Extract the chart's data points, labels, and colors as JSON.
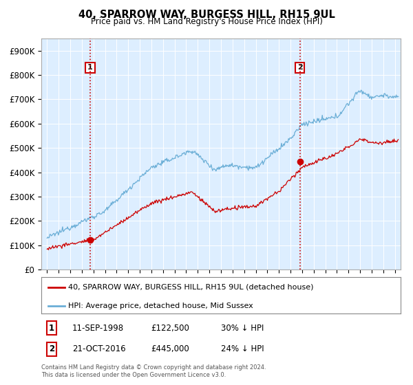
{
  "title": "40, SPARROW WAY, BURGESS HILL, RH15 9UL",
  "subtitle": "Price paid vs. HM Land Registry's House Price Index (HPI)",
  "ylabel_ticks": [
    "£0",
    "£100K",
    "£200K",
    "£300K",
    "£400K",
    "£500K",
    "£600K",
    "£700K",
    "£800K",
    "£900K"
  ],
  "ytick_values": [
    0,
    100000,
    200000,
    300000,
    400000,
    500000,
    600000,
    700000,
    800000,
    900000
  ],
  "ylim": [
    0,
    950000
  ],
  "xlim_start": 1994.5,
  "xlim_end": 2025.5,
  "hpi_color": "#6aaed6",
  "price_color": "#cc0000",
  "vline_color": "#cc0000",
  "chart_bg": "#ddeeff",
  "transaction1_x": 1998.71,
  "transaction1_y": 122500,
  "transaction1_label": "1",
  "transaction1_date": "11-SEP-1998",
  "transaction1_price": "£122,500",
  "transaction1_note": "30% ↓ HPI",
  "transaction2_x": 2016.8,
  "transaction2_y": 445000,
  "transaction2_label": "2",
  "transaction2_date": "21-OCT-2016",
  "transaction2_price": "£445,000",
  "transaction2_note": "24% ↓ HPI",
  "legend_line1": "40, SPARROW WAY, BURGESS HILL, RH15 9UL (detached house)",
  "legend_line2": "HPI: Average price, detached house, Mid Sussex",
  "footer1": "Contains HM Land Registry data © Crown copyright and database right 2024.",
  "footer2": "This data is licensed under the Open Government Licence v3.0.",
  "label_box_color": "#cc0000",
  "background_color": "#ffffff",
  "grid_color": "#aaaacc"
}
